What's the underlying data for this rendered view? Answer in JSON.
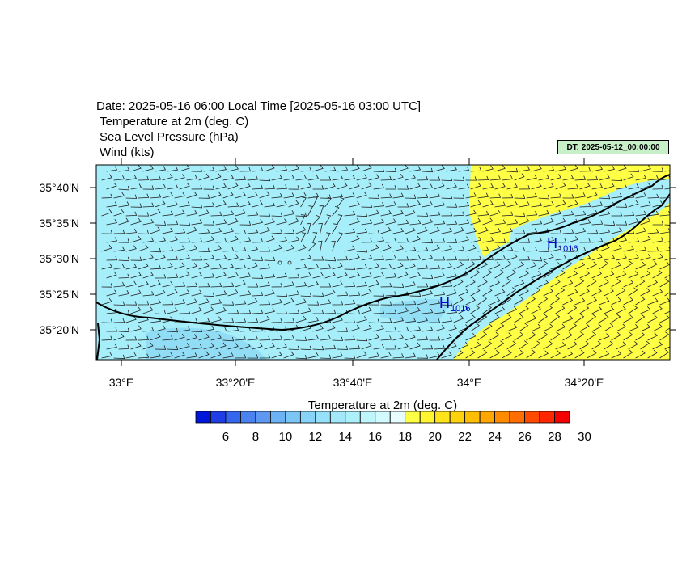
{
  "header": {
    "date_line": "Date: 2025-05-16  06:00 Local Time [2025-05-16  03:00 UTC]",
    "var1": "Temperature at 2m   (deg. C)",
    "var2": "Sea Level Pressure   (hPa)",
    "var3": "Wind   (kts)",
    "dt_stamp": "DT: 2025-05-12_00:00:00"
  },
  "map": {
    "lat_labels": [
      "35°40'N",
      "35°35'N",
      "35°30'N",
      "35°25'N",
      "35°20'N"
    ],
    "lon_labels": [
      "33°E",
      "33°20'E",
      "33°40'E",
      "34°E",
      "34°20'E"
    ],
    "pressure_highs": [
      {
        "symbol": "H",
        "value": "1016"
      },
      {
        "symbol": "H",
        "value": "1016"
      }
    ],
    "colors": {
      "land_cool": "#a6eefa",
      "land_cooler": "#8cd8f4",
      "warm": "#ffff46",
      "coast": "#000000",
      "high_label": "#0000cc"
    }
  },
  "colorbar": {
    "title": "Temperature at 2m  (deg. C)",
    "labels": [
      "6",
      "8",
      "10",
      "12",
      "14",
      "16",
      "18",
      "20",
      "22",
      "24",
      "26",
      "28",
      "30"
    ],
    "colors": [
      "#0016d8",
      "#1f3ee6",
      "#3566ee",
      "#4a82f0",
      "#5e98f2",
      "#6cb2f4",
      "#7cc6f6",
      "#88d4f8",
      "#96e0fa",
      "#a2e8fa",
      "#acf0fa",
      "#bff6fc",
      "#d2faff",
      "#e8fdff",
      "#ffff46",
      "#fff530",
      "#ffe41c",
      "#ffd20e",
      "#ffbd00",
      "#ffa600",
      "#ff8c00",
      "#ff6e00",
      "#ff4a00",
      "#ff2600",
      "#f40000"
    ]
  }
}
